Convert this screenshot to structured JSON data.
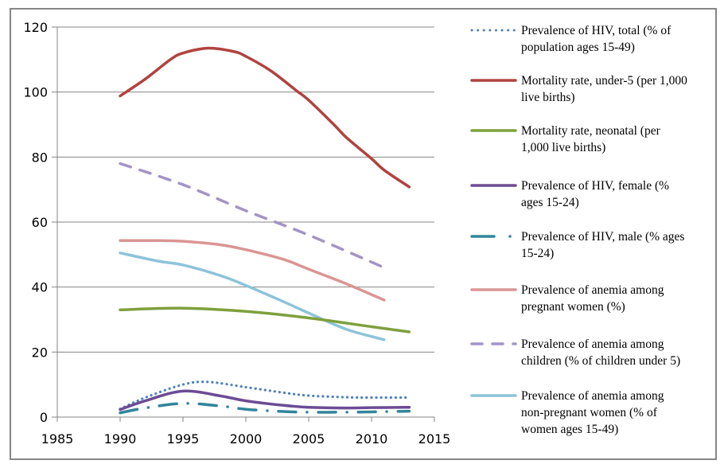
{
  "chart_data": {
    "type": "line",
    "title": "",
    "xlabel": "",
    "ylabel": "",
    "xlim": [
      1985,
      2015
    ],
    "ylim": [
      0,
      120
    ],
    "x_ticks": [
      "1985",
      "1990",
      "1995",
      "2000",
      "2005",
      "2010",
      "2015"
    ],
    "y_ticks": [
      "0",
      "20",
      "40",
      "60",
      "80",
      "100",
      "120"
    ],
    "grid": "horizontal",
    "legend_position": "right",
    "series": [
      {
        "name": "Prevalence of HIV, total (% of population ages 15-49)",
        "legend_lines": [
          "Prevalence of HIV, total (% of",
          "population ages 15-49)"
        ],
        "color": "#4F81BD",
        "dash": "dotted",
        "x": [
          1990,
          1992,
          1995,
          1997,
          2000,
          2003,
          2005,
          2008,
          2010,
          2013
        ],
        "y": [
          2.5,
          6,
          10,
          10.8,
          9.2,
          7.5,
          6.6,
          6.1,
          6.0,
          6.0
        ]
      },
      {
        "name": "Mortality rate, under-5 (per 1,000 live births)",
        "legend_lines": [
          "Mortality rate, under-5 (per 1,000",
          "live births)"
        ],
        "color": "#B0433F",
        "dash": "solid",
        "x": [
          1990,
          1992,
          1994,
          1995,
          1997,
          1999,
          2000,
          2002,
          2004,
          2005,
          2007,
          2008,
          2010,
          2011,
          2013
        ],
        "y": [
          98.8,
          104,
          110,
          112,
          113.5,
          112.5,
          111,
          106.5,
          100.5,
          97.5,
          90,
          86,
          79.5,
          76,
          70.8
        ]
      },
      {
        "name": "Mortality rate, neonatal (per 1,000 live births)",
        "legend_lines": [
          "Mortality rate, neonatal (per",
          "1,000 live births)"
        ],
        "color": "#7EA03C",
        "dash": "solid",
        "x": [
          1990,
          1995,
          2000,
          2005,
          2010,
          2013
        ],
        "y": [
          33,
          33.5,
          32.5,
          30.5,
          27.8,
          26.2
        ]
      },
      {
        "name": "Prevalence of HIV, female (% ages 15-24)",
        "legend_lines": [
          "Prevalence of HIV, female (%",
          "ages 15-24)"
        ],
        "color": "#6B4C94",
        "dash": "solid",
        "x": [
          1990,
          1992,
          1995,
          1998,
          2000,
          2003,
          2005,
          2008,
          2010,
          2013
        ],
        "y": [
          2.3,
          5,
          8,
          6.5,
          5,
          3.6,
          3,
          2.8,
          2.9,
          3.0
        ]
      },
      {
        "name": "Prevalence of HIV, male (% ages 15-24)",
        "legend_lines": [
          "Prevalence of HIV, male (% ages",
          "15-24)"
        ],
        "color": "#31859C",
        "dash": "dashdot",
        "x": [
          1990,
          1992,
          1995,
          1998,
          2000,
          2003,
          2005,
          2008,
          2010,
          2013
        ],
        "y": [
          1.3,
          2.8,
          4.2,
          3.4,
          2.4,
          1.7,
          1.5,
          1.5,
          1.6,
          1.8
        ]
      },
      {
        "name": "Prevalence of anemia among pregnant women (%)",
        "legend_lines": [
          "Prevalence of anemia among",
          "pregnant women (%)"
        ],
        "color": "#D99694",
        "dash": "solid",
        "x": [
          1990,
          1993,
          1995,
          1998,
          2000,
          2003,
          2005,
          2008,
          2011
        ],
        "y": [
          54.3,
          54.3,
          54.1,
          53,
          51.5,
          48.5,
          45.5,
          41,
          36
        ]
      },
      {
        "name": "Prevalence of anemia among children (% of children under 5)",
        "legend_lines": [
          "Prevalence of anemia among",
          "children (% of children under 5)"
        ],
        "color": "#A394C6",
        "dash": "dashed",
        "x": [
          1990,
          1995,
          2000,
          2005,
          2011
        ],
        "y": [
          78,
          71.5,
          63.5,
          56,
          46
        ]
      },
      {
        "name": "Prevalence of anemia among non-pregnant women (% of women ages 15-49)",
        "legend_lines": [
          "Prevalence of anemia among",
          "non-pregnant women (% of",
          "women ages 15-49)"
        ],
        "color": "#8DC3D9",
        "dash": "solid",
        "x": [
          1990,
          1993,
          1995,
          1998,
          2000,
          2003,
          2005,
          2008,
          2011
        ],
        "y": [
          50.5,
          48,
          46.8,
          43.5,
          40.5,
          35.5,
          32,
          27,
          23.8
        ]
      }
    ]
  }
}
